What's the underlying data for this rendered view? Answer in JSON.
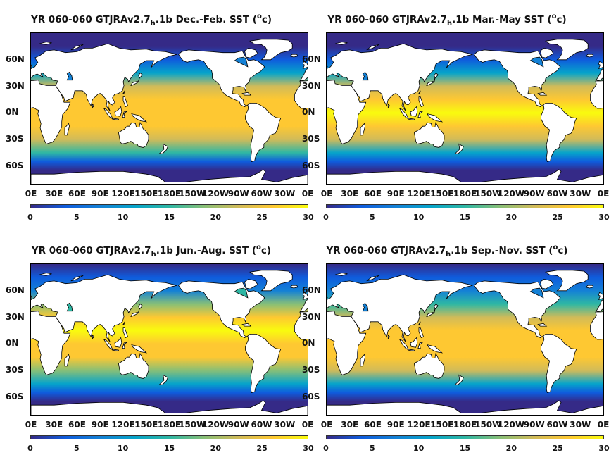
{
  "panels": [
    {
      "title_main": "YR 060-060 GTJRAv2.7",
      "title_sub": "h",
      "title_rest": ".1b Dec.-Feb. SST (",
      "title_sup": "o",
      "title_end": "c)",
      "season": "djf"
    },
    {
      "title_main": "YR 060-060 GTJRAv2.7",
      "title_sub": "h",
      "title_rest": ".1b Mar.-May SST (",
      "title_sup": "o",
      "title_end": "c)",
      "season": "mam"
    },
    {
      "title_main": "YR 060-060 GTJRAv2.7",
      "title_sub": "h",
      "title_rest": ".1b Jun.-Aug. SST (",
      "title_sup": "o",
      "title_end": "c)",
      "season": "jja"
    },
    {
      "title_main": "YR 060-060 GTJRAv2.7",
      "title_sub": "h",
      "title_rest": ".1b Sep.-Nov. SST (",
      "title_sup": "o",
      "title_end": "c)",
      "season": "son"
    }
  ],
  "axes": {
    "lat_labels": [
      "60N",
      "30N",
      "0N",
      "30S",
      "60S"
    ],
    "lat_values": [
      60,
      30,
      0,
      -30,
      -60
    ],
    "lon_labels": [
      "0E",
      "30E",
      "60E",
      "90E",
      "120E",
      "150E",
      "180E",
      "150W",
      "120W",
      "90W",
      "60W",
      "30W",
      "0E"
    ],
    "lon_values": [
      0,
      30,
      60,
      90,
      120,
      150,
      180,
      210,
      240,
      270,
      300,
      330,
      360
    ],
    "lat_range": [
      -80,
      90
    ],
    "lon_range": [
      0,
      360
    ]
  },
  "colorbar": {
    "ticks": [
      "0",
      "5",
      "10",
      "15",
      "20",
      "25",
      "30"
    ],
    "range": [
      0,
      30
    ],
    "colormap": "parula",
    "colors": [
      "#352a87",
      "#0f5cdd",
      "#1481d6",
      "#06a4ca",
      "#2eb7a4",
      "#87bf77",
      "#d1bb59",
      "#fec832",
      "#f9fb0e"
    ]
  },
  "map": {
    "land_color": "#ffffff",
    "coast_color": "#000000"
  }
}
